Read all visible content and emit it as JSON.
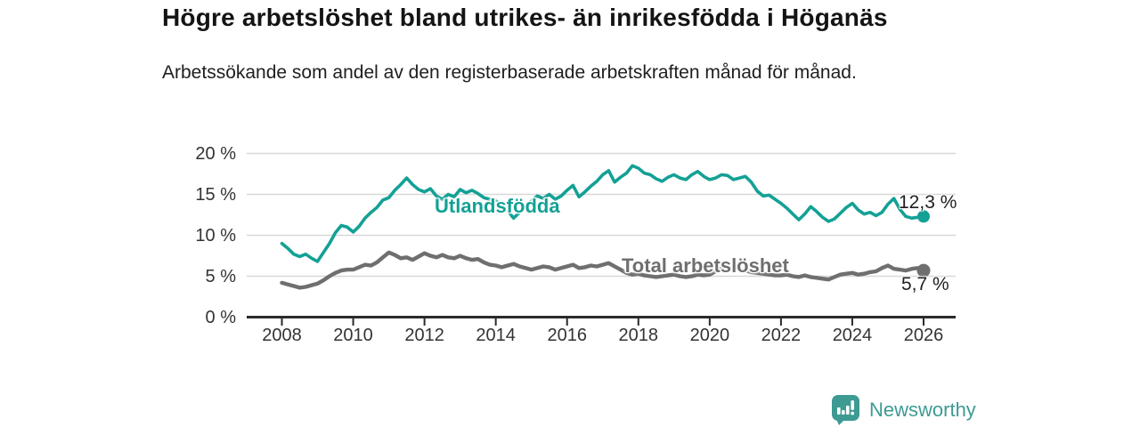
{
  "header": {
    "title": "Högre arbetslöshet bland utrikes- än inrikesfödda i Höganäs",
    "subtitle": "Arbetssökande som andel av den registerbaserade arbetskraften månad för månad."
  },
  "chart_data": {
    "type": "line",
    "title": "Högre arbetslöshet bland utrikes- än inrikesfödda i Höganäs",
    "xlabel": "",
    "ylabel": "",
    "x_unit": "decimal_year_monthly",
    "xlim": [
      2007.0,
      2026.9
    ],
    "ylim": [
      0,
      20
    ],
    "grid": "horizontal",
    "legend_position": "inline-labels",
    "y_ticks": [
      0,
      5,
      10,
      15,
      20
    ],
    "y_tick_labels": [
      "0 %",
      "5 %",
      "10 %",
      "15 %",
      "20 %"
    ],
    "x_ticks": [
      2008,
      2010,
      2012,
      2014,
      2016,
      2018,
      2020,
      2022,
      2024,
      2026
    ],
    "x_tick_labels": [
      "2008",
      "2010",
      "2012",
      "2014",
      "2016",
      "2018",
      "2020",
      "2022",
      "2024",
      "2026"
    ],
    "x_start": 2008.0,
    "x_step": 0.16667,
    "series": [
      {
        "name": "Utlandsfödda",
        "color": "#14a195",
        "end_value": 12.3,
        "end_label": "12,3 %",
        "values": [
          9.0,
          8.4,
          7.7,
          7.4,
          7.7,
          7.2,
          6.8,
          7.9,
          9.0,
          10.3,
          11.2,
          11.0,
          10.4,
          11.1,
          12.1,
          12.8,
          13.4,
          14.3,
          14.6,
          15.5,
          16.2,
          17.0,
          16.2,
          15.6,
          15.3,
          15.7,
          14.8,
          14.4,
          15.0,
          14.7,
          15.6,
          15.2,
          15.5,
          15.1,
          14.6,
          14.4,
          14.2,
          13.7,
          13.0,
          12.1,
          12.8,
          13.5,
          14.2,
          14.8,
          14.5,
          15.0,
          14.4,
          14.8,
          15.5,
          16.1,
          14.7,
          15.3,
          16.0,
          16.6,
          17.4,
          17.9,
          16.5,
          17.1,
          17.6,
          18.5,
          18.2,
          17.6,
          17.4,
          16.9,
          16.6,
          17.1,
          17.4,
          17.0,
          16.8,
          17.4,
          17.8,
          17.2,
          16.8,
          17.0,
          17.4,
          17.3,
          16.8,
          17.0,
          17.2,
          16.5,
          15.4,
          14.8,
          14.9,
          14.4,
          13.9,
          13.3,
          12.6,
          11.9,
          12.6,
          13.5,
          12.9,
          12.2,
          11.7,
          12.0,
          12.7,
          13.4,
          13.9,
          13.1,
          12.6,
          12.8,
          12.4,
          12.8,
          13.8,
          14.5,
          13.2,
          12.3,
          12.1,
          12.2,
          12.3
        ]
      },
      {
        "name": "Total arbetslöshet",
        "color": "#6f6f6f",
        "end_value": 5.7,
        "end_label": "5,7 %",
        "values": [
          4.2,
          4.0,
          3.8,
          3.6,
          3.7,
          3.9,
          4.1,
          4.5,
          5.0,
          5.4,
          5.7,
          5.8,
          5.8,
          6.1,
          6.4,
          6.3,
          6.7,
          7.3,
          7.9,
          7.6,
          7.2,
          7.3,
          7.0,
          7.4,
          7.8,
          7.5,
          7.3,
          7.6,
          7.3,
          7.2,
          7.5,
          7.2,
          7.0,
          7.1,
          6.7,
          6.4,
          6.3,
          6.1,
          6.3,
          6.5,
          6.2,
          6.0,
          5.8,
          6.0,
          6.2,
          6.1,
          5.8,
          6.0,
          6.2,
          6.4,
          6.0,
          6.1,
          6.3,
          6.2,
          6.4,
          6.6,
          6.2,
          5.8,
          5.4,
          5.2,
          5.3,
          5.1,
          5.0,
          4.9,
          5.0,
          5.1,
          5.2,
          5.0,
          4.9,
          5.0,
          5.2,
          5.1,
          5.2,
          5.6,
          6.0,
          6.1,
          5.9,
          5.8,
          5.7,
          5.5,
          5.4,
          5.3,
          5.2,
          5.1,
          5.1,
          5.2,
          5.0,
          4.9,
          5.1,
          4.9,
          4.8,
          4.7,
          4.6,
          4.9,
          5.2,
          5.3,
          5.4,
          5.2,
          5.3,
          5.5,
          5.6,
          6.0,
          6.3,
          5.9,
          5.8,
          5.7,
          5.9,
          6.0,
          5.7
        ]
      }
    ],
    "colors": {
      "accent_teal": "#14a195",
      "series_gray": "#6f6f6f",
      "gridline": "#d8d8d8",
      "axis": "#2b2b2b",
      "tick_text": "#333333"
    }
  },
  "footer": {
    "brand": "Newsworthy",
    "brand_color": "#3d9b93"
  }
}
